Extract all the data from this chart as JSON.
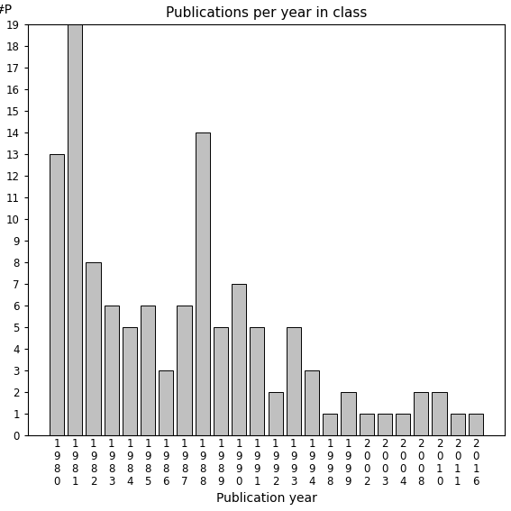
{
  "title": "Publications per year in class",
  "xlabel": "Publication year",
  "ylabel": "#P",
  "categories": [
    "1980",
    "1981",
    "1982",
    "1983",
    "1984",
    "1985",
    "1986",
    "1987",
    "1988",
    "1989",
    "1990",
    "1991",
    "1992",
    "1993",
    "1994",
    "1998",
    "1999",
    "2002",
    "2003",
    "2004",
    "2008",
    "2010",
    "2011",
    "2016"
  ],
  "values": [
    13,
    19,
    8,
    6,
    5,
    6,
    3,
    6,
    14,
    5,
    7,
    5,
    2,
    5,
    3,
    1,
    2,
    1,
    1,
    1,
    2,
    2,
    1,
    1
  ],
  "bar_color": "#c0c0c0",
  "bar_edgecolor": "#000000",
  "ylim": [
    0,
    19
  ],
  "yticks": [
    0,
    1,
    2,
    3,
    4,
    5,
    6,
    7,
    8,
    9,
    10,
    11,
    12,
    13,
    14,
    15,
    16,
    17,
    18,
    19
  ],
  "background_color": "#ffffff",
  "title_fontsize": 11,
  "label_fontsize": 10,
  "tick_fontsize": 8.5
}
